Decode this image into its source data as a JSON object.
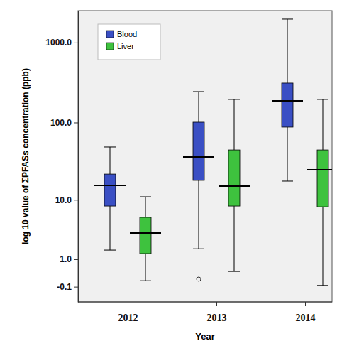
{
  "chart_data": {
    "type": "box",
    "x_label": "Year",
    "y_label": "log 10 value of ΣPFASs concentration (ppb)",
    "categories": [
      "2012",
      "2013",
      "2014"
    ],
    "log": "y",
    "legend": "top-left",
    "ylim": [
      -0.7,
      2499
    ],
    "yticks": [
      {
        "value": -0.1,
        "label": "-0.1"
      },
      {
        "value": 1,
        "label": "1.0"
      },
      {
        "value": 10,
        "label": "10.0"
      },
      {
        "value": 100,
        "label": "100.0"
      },
      {
        "value": 1000,
        "label": "1000.0"
      }
    ],
    "series": [
      {
        "name": "Blood",
        "color": "#3a4fc4",
        "values": [
          {
            "min": 1.6,
            "q1": 8.2,
            "median": 15.6,
            "q3": 22,
            "max": 49,
            "outliers": []
          },
          {
            "min": 1.7,
            "q1": 18.2,
            "median": 36.6,
            "q3": 101,
            "max": 244,
            "outliers": [
              0.13
            ]
          },
          {
            "min": 17.8,
            "q1": 87.5,
            "median": 187,
            "q3": 312,
            "max": 1958,
            "outliers": []
          }
        ]
      },
      {
        "name": "Liver",
        "color": "#3ec23e",
        "values": [
          {
            "min": 0.08,
            "q1": 1.35,
            "median": 3.25,
            "q3": 5.65,
            "max": 11,
            "outliers": []
          },
          {
            "min": 0.41,
            "q1": 8.2,
            "median": 15.3,
            "q3": 45,
            "max": 195,
            "outliers": []
          },
          {
            "min": -0.06,
            "q1": 8.0,
            "median": 25,
            "q3": 45,
            "max": 195,
            "outliers": []
          }
        ]
      }
    ]
  }
}
